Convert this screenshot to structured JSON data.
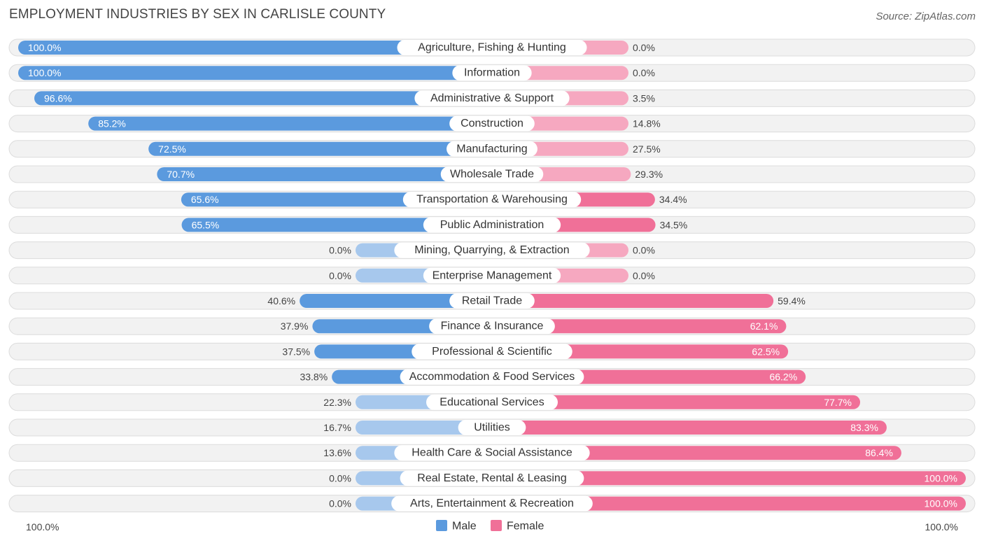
{
  "title": "EMPLOYMENT INDUSTRIES BY SEX IN CARLISLE COUNTY",
  "source": "Source: ZipAtlas.com",
  "colors": {
    "male_strong": "#5b9ade",
    "male_light": "#a7c8ed",
    "female_strong": "#f07098",
    "female_light": "#f6a8c0"
  },
  "chart_data": {
    "type": "bar",
    "orientation": "horizontal-diverging",
    "title": "EMPLOYMENT INDUSTRIES BY SEX IN CARLISLE COUNTY",
    "categories": [
      "Agriculture, Fishing & Hunting",
      "Information",
      "Administrative & Support",
      "Construction",
      "Manufacturing",
      "Wholesale Trade",
      "Transportation & Warehousing",
      "Public Administration",
      "Mining, Quarrying, & Extraction",
      "Enterprise Management",
      "Retail Trade",
      "Finance & Insurance",
      "Professional & Scientific",
      "Accommodation & Food Services",
      "Educational Services",
      "Utilities",
      "Health Care & Social Assistance",
      "Real Estate, Rental & Leasing",
      "Arts, Entertainment & Recreation"
    ],
    "series": [
      {
        "name": "Male",
        "values": [
          100.0,
          100.0,
          96.6,
          85.2,
          72.5,
          70.7,
          65.6,
          65.5,
          0.0,
          0.0,
          40.6,
          37.9,
          37.5,
          33.8,
          22.3,
          16.7,
          13.6,
          0.0,
          0.0
        ],
        "labels": [
          "100.0%",
          "100.0%",
          "96.6%",
          "85.2%",
          "72.5%",
          "70.7%",
          "65.6%",
          "65.5%",
          "0.0%",
          "0.0%",
          "40.6%",
          "37.9%",
          "37.5%",
          "33.8%",
          "22.3%",
          "16.7%",
          "13.6%",
          "0.0%",
          "0.0%"
        ]
      },
      {
        "name": "Female",
        "values": [
          0.0,
          0.0,
          3.5,
          14.8,
          27.5,
          29.3,
          34.4,
          34.5,
          0.0,
          0.0,
          59.4,
          62.1,
          62.5,
          66.2,
          77.7,
          83.3,
          86.4,
          100.0,
          100.0
        ],
        "labels": [
          "0.0%",
          "0.0%",
          "3.5%",
          "14.8%",
          "27.5%",
          "29.3%",
          "34.4%",
          "34.5%",
          "0.0%",
          "0.0%",
          "59.4%",
          "62.1%",
          "62.5%",
          "66.2%",
          "77.7%",
          "83.3%",
          "86.4%",
          "100.0%",
          "100.0%"
        ]
      }
    ],
    "xlim": [
      0,
      100
    ],
    "axis_left_label": "100.0%",
    "axis_right_label": "100.0%",
    "legend": [
      "Male",
      "Female"
    ],
    "legend_position": "bottom-center"
  }
}
